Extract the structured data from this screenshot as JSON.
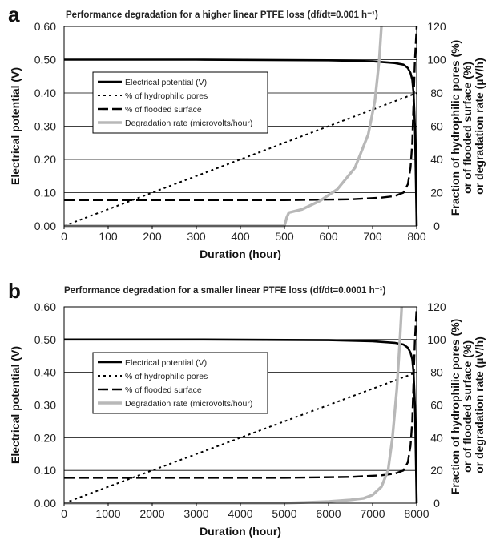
{
  "chart_data": [
    {
      "panel": "a",
      "type": "line",
      "title": "Performance degradation for a higher linear PTFE loss (df/dt=0.001 h⁻¹)",
      "xlabel": "Duration (hour)",
      "ylabel": "Electrical potential (V)",
      "y2label_lines": [
        "Fraction of hydrophilic pores (%)",
        "or of flooded surface (%)",
        "or degradation rate (µV/h)"
      ],
      "xlim": [
        0,
        800
      ],
      "ylim": [
        0,
        0.6
      ],
      "y2lim": [
        0,
        120
      ],
      "xticks": [
        "0",
        "100",
        "200",
        "300",
        "400",
        "500",
        "600",
        "700",
        "800"
      ],
      "yticks": [
        "0.00",
        "0.10",
        "0.20",
        "0.30",
        "0.40",
        "0.50",
        "0.60"
      ],
      "y2ticks": [
        "0",
        "20",
        "40",
        "60",
        "80",
        "100",
        "120"
      ],
      "grid": "horizontal",
      "legend": "upper-left",
      "series": [
        {
          "name": "Electrical potential (V)",
          "axis": "left",
          "style": "solid",
          "color": "#000000",
          "x": [
            0,
            300,
            600,
            700,
            750,
            770,
            780,
            786,
            790,
            793,
            796,
            798,
            800
          ],
          "y": [
            0.5,
            0.5,
            0.498,
            0.495,
            0.49,
            0.485,
            0.475,
            0.46,
            0.44,
            0.4,
            0.3,
            0.15,
            0.0
          ]
        },
        {
          "name": "% of hydrophilic pores",
          "axis": "right",
          "style": "dotted",
          "color": "#000000",
          "x": [
            0,
            800
          ],
          "y": [
            0,
            80
          ]
        },
        {
          "name": "% of flooded surface",
          "axis": "right",
          "style": "dashed",
          "color": "#000000",
          "x": [
            0,
            500,
            650,
            720,
            750,
            770,
            780,
            786,
            790,
            793,
            796,
            800
          ],
          "y": [
            15.5,
            15.5,
            16,
            17,
            18,
            20,
            25,
            35,
            50,
            75,
            100,
            120
          ]
        },
        {
          "name": "Degradation rate (microvolts/hour)",
          "axis": "right",
          "style": "thick-gray",
          "color": "#b8b8b8",
          "x": [
            0,
            500,
            505,
            510,
            540,
            580,
            620,
            660,
            690,
            705,
            715,
            720
          ],
          "y": [
            0,
            0,
            5,
            8,
            10,
            15,
            22,
            35,
            55,
            75,
            100,
            120
          ]
        }
      ]
    },
    {
      "panel": "b",
      "type": "line",
      "title": "Performance degradation for a smaller linear PTFE loss (df/dt=0.0001 h⁻¹)",
      "xlabel": "Duration (hour)",
      "ylabel": "Electrical potential (V)",
      "y2label_lines": [
        "Fraction of hydrophilic pores (%)",
        "or of flooded surface (%)",
        "or degradation rate (µV/h)"
      ],
      "xlim": [
        0,
        8000
      ],
      "ylim": [
        0,
        0.6
      ],
      "y2lim": [
        0,
        120
      ],
      "xticks": [
        "0",
        "1000",
        "2000",
        "3000",
        "4000",
        "5000",
        "6000",
        "7000",
        "8000"
      ],
      "yticks": [
        "0.00",
        "0.10",
        "0.20",
        "0.30",
        "0.40",
        "0.50",
        "0.60"
      ],
      "y2ticks": [
        "0",
        "20",
        "40",
        "60",
        "80",
        "100",
        "120"
      ],
      "grid": "horizontal",
      "legend": "upper-left",
      "series": [
        {
          "name": "Electrical potential (V)",
          "axis": "left",
          "style": "solid",
          "color": "#000000",
          "x": [
            0,
            3000,
            6000,
            7000,
            7500,
            7700,
            7800,
            7860,
            7900,
            7930,
            7960,
            7980,
            8000
          ],
          "y": [
            0.5,
            0.5,
            0.498,
            0.495,
            0.49,
            0.485,
            0.475,
            0.46,
            0.44,
            0.4,
            0.3,
            0.15,
            0.0
          ]
        },
        {
          "name": "% of hydrophilic pores",
          "axis": "right",
          "style": "dotted",
          "color": "#000000",
          "x": [
            0,
            8000
          ],
          "y": [
            0,
            80
          ]
        },
        {
          "name": "% of flooded surface",
          "axis": "right",
          "style": "dashed",
          "color": "#000000",
          "x": [
            0,
            5000,
            6500,
            7200,
            7500,
            7700,
            7800,
            7860,
            7900,
            7930,
            7960,
            8000
          ],
          "y": [
            15.5,
            15.5,
            16,
            17,
            18,
            20,
            25,
            35,
            50,
            75,
            100,
            120
          ]
        },
        {
          "name": "Degradation rate (microvolts/hour)",
          "axis": "right",
          "style": "thick-gray",
          "color": "#b8b8b8",
          "x": [
            0,
            5000,
            6000,
            6500,
            6800,
            7000,
            7200,
            7350,
            7450,
            7550,
            7620,
            7660
          ],
          "y": [
            0,
            0,
            1,
            2,
            3,
            5,
            10,
            20,
            40,
            70,
            100,
            120
          ]
        }
      ]
    }
  ]
}
